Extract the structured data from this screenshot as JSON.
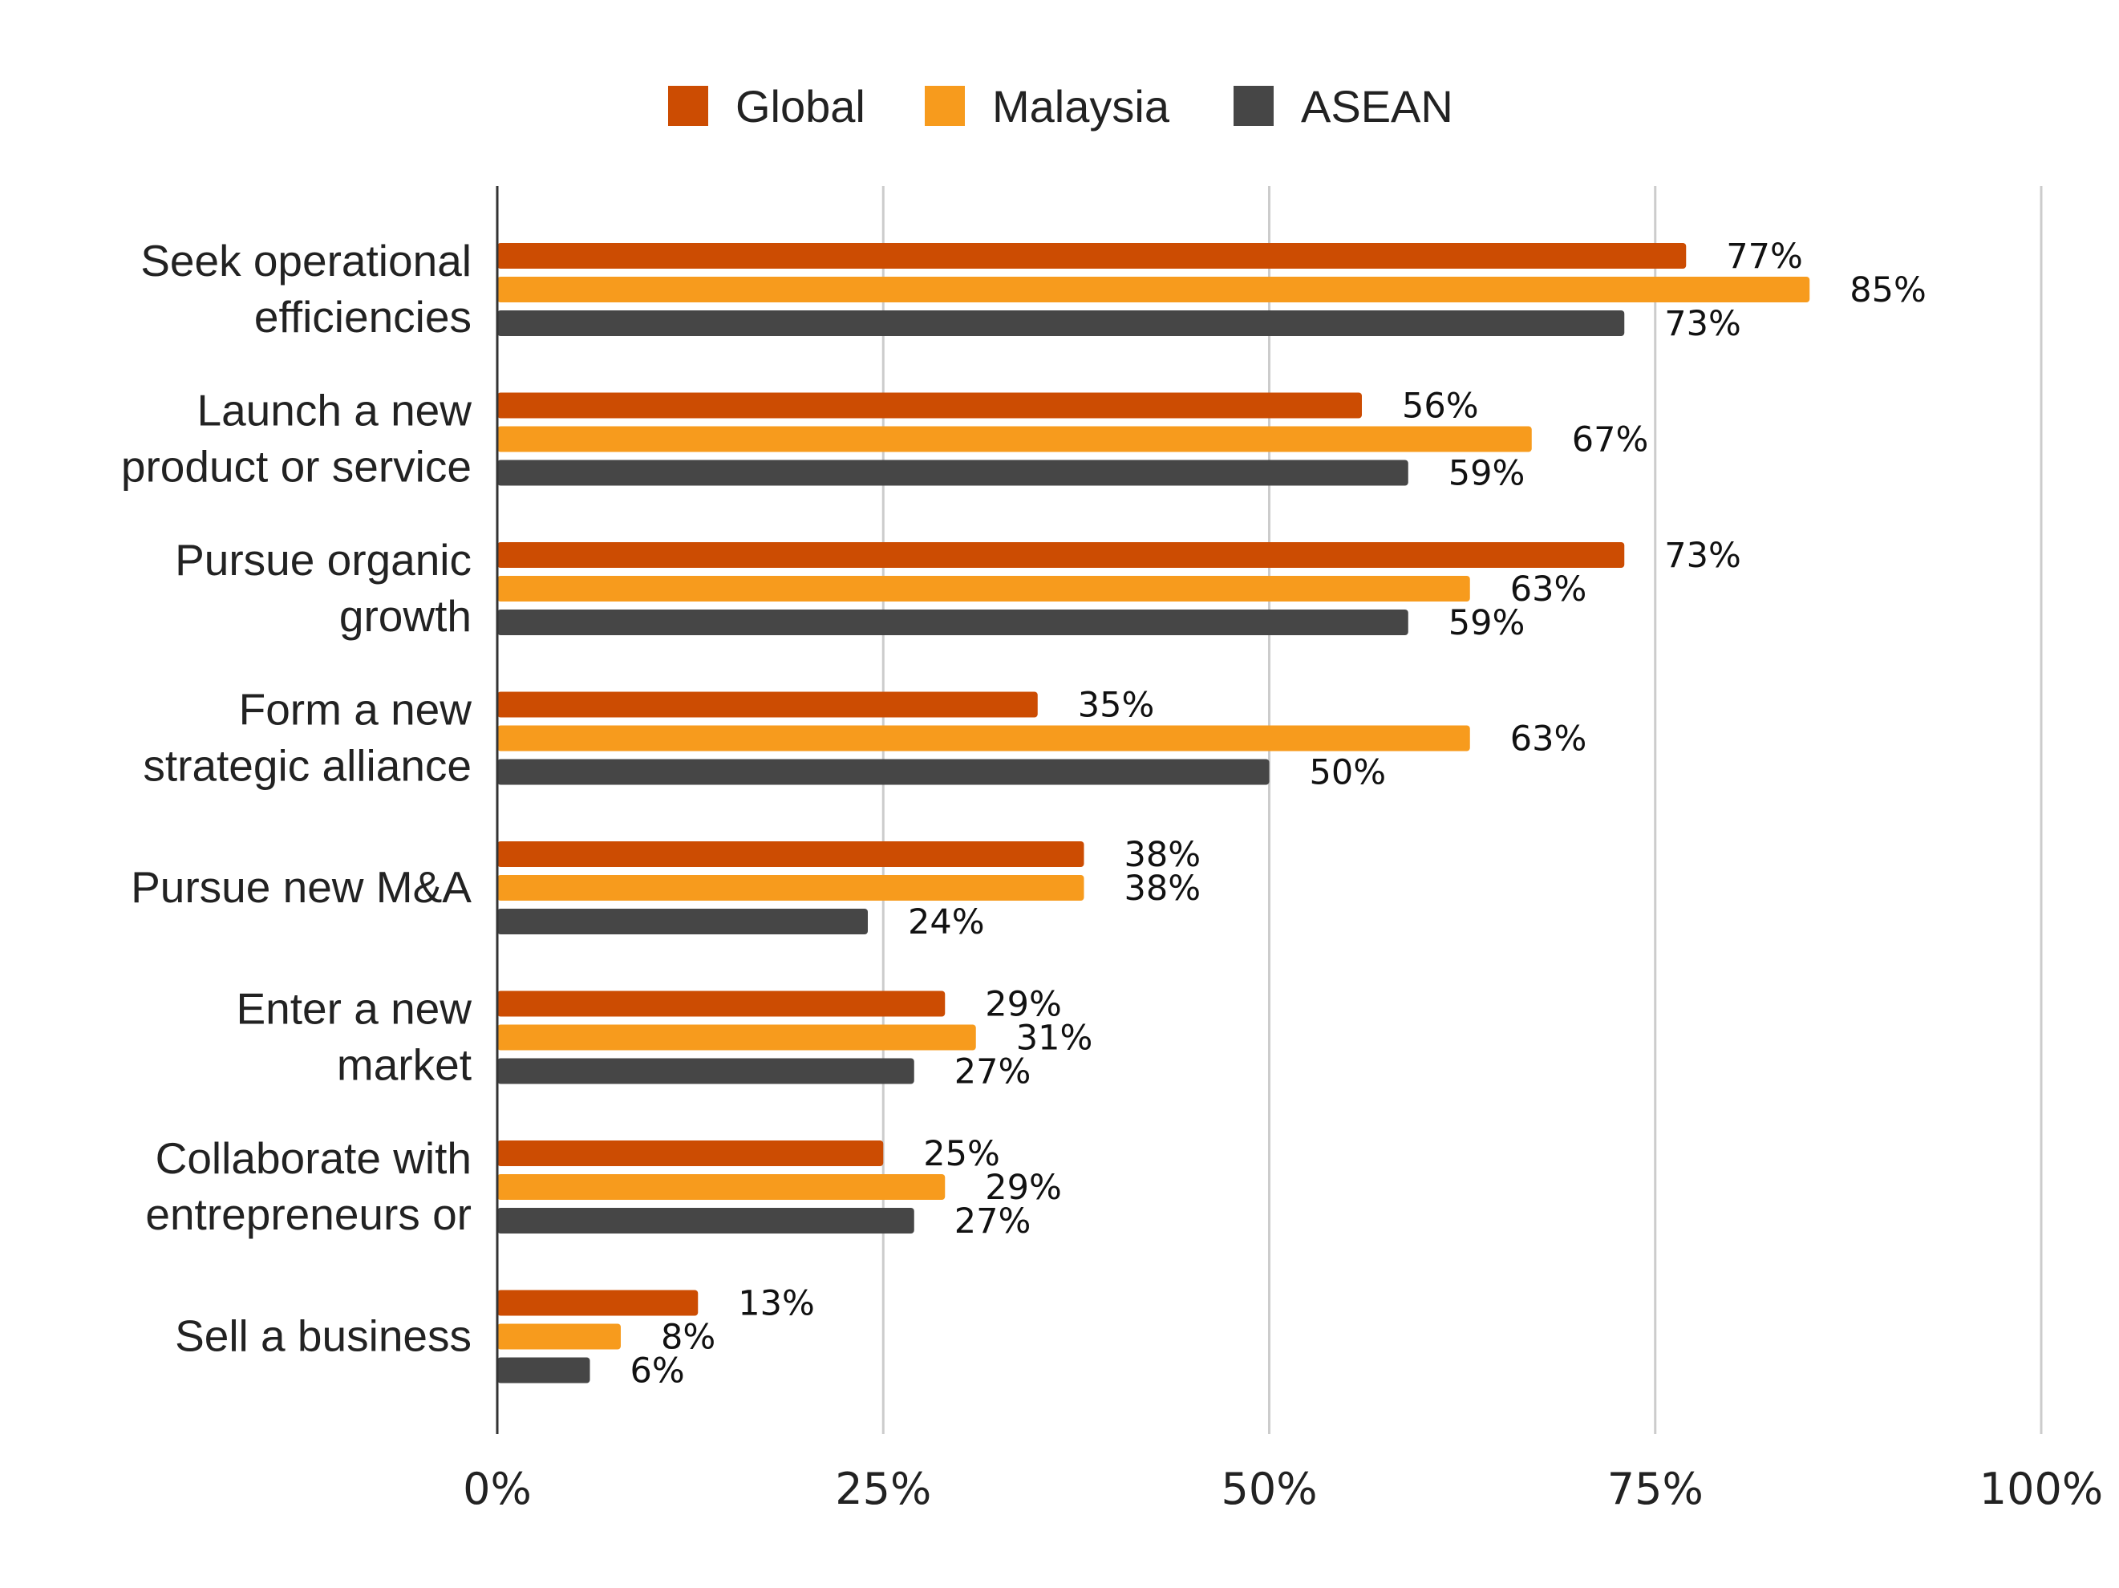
{
  "chart_data": {
    "type": "bar",
    "orientation": "horizontal",
    "categories": [
      [
        "Seek operational",
        "efficiencies"
      ],
      [
        "Launch a new",
        "product or service"
      ],
      [
        "Pursue organic",
        "growth"
      ],
      [
        "Form a new",
        "strategic alliance"
      ],
      [
        "Pursue new M&A"
      ],
      [
        "Enter a new",
        "market"
      ],
      [
        "Collaborate with",
        "entrepreneurs or"
      ],
      [
        "Sell a business"
      ]
    ],
    "series": [
      {
        "name": "Global",
        "color": "#cc4c02",
        "values": [
          77,
          56,
          73,
          35,
          38,
          29,
          25,
          13
        ]
      },
      {
        "name": "Malaysia",
        "color": "#f79b1d",
        "values": [
          85,
          67,
          63,
          63,
          38,
          31,
          29,
          8
        ]
      },
      {
        "name": "ASEAN",
        "color": "#464646",
        "values": [
          73,
          59,
          59,
          50,
          24,
          27,
          27,
          6
        ]
      }
    ],
    "value_unit": "%",
    "xlim": [
      0,
      100
    ],
    "xticks": [
      0,
      25,
      50,
      75,
      100
    ],
    "xtick_labels": [
      "0%",
      "25%",
      "50%",
      "75%",
      "100%"
    ],
    "grid": "vertical",
    "legend_position": "top-center"
  }
}
